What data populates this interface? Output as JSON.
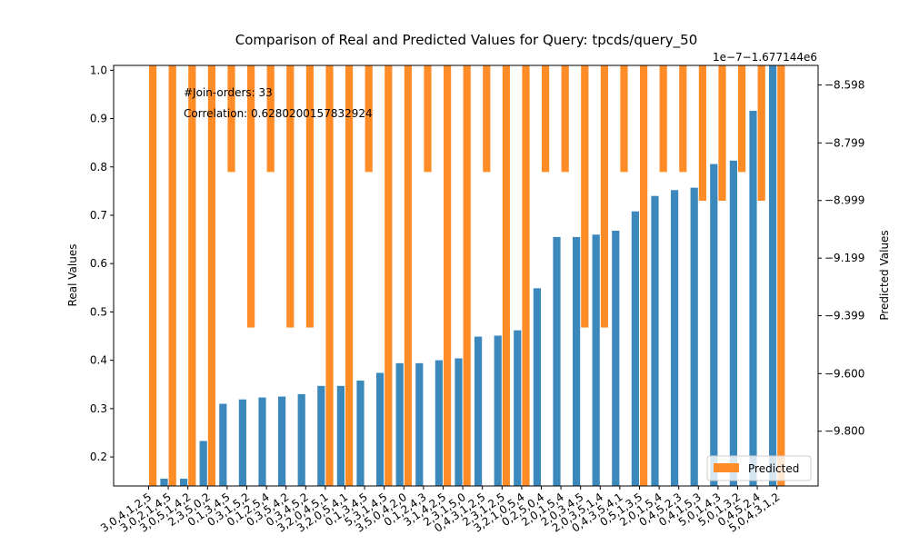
{
  "chart_data": {
    "type": "bar",
    "title": "Comparison of Real and Predicted Values for Query: tpcds/query_50",
    "ylabel": "Real Values",
    "y2label": "Predicted Values",
    "y2_offset_text": "1e−7−1.677144e6",
    "annotations": [
      "#Join-orders: 33",
      "Correlation: 0.6280200157832924"
    ],
    "legend": {
      "position": "bottom-right",
      "entries": [
        "Predicted"
      ]
    },
    "ylim": [
      0.14,
      1.01
    ],
    "y2lim": [
      -9.99,
      -8.53
    ],
    "y_ticks": [
      "0.2",
      "0.3",
      "0.4",
      "0.5",
      "0.6",
      "0.7",
      "0.8",
      "0.9",
      "1.0"
    ],
    "y2_ticks": [
      "-8.598",
      "-8.799",
      "-8.999",
      "-9.199",
      "-9.399",
      "-9.600",
      "-9.800"
    ],
    "categories": [
      "3,0,4,1,2,5",
      "3,0,2,1,4,5",
      "3,0,5,1,4,2",
      "2,3,5,0,2",
      "0,1,3,4,5",
      "0,3,1,5,2",
      "0,1,2,5,4",
      "0,3,5,4,2",
      "0,3,4,5,2",
      "3,2,0,4,5,1",
      "3,2,0,5,4,1",
      "0,1,3,4,5",
      "5,3,1,4,5",
      "3,5,0,4,2,0",
      "0,1,2,4,3",
      "3,1,4,2,5",
      "2,3,1,5,0",
      "0,4,3,1,2,5",
      "2,3,1,2,5",
      "3,2,1,0,5,4",
      "0,2,5,0,4",
      "2,0,1,5,4",
      "2,0,3,4,5",
      "2,0,3,5,1,4",
      "0,4,3,5,4,1",
      "0,5,1,3,5",
      "2,0,1,5,4",
      "0,4,5,2,3",
      "0,4,1,5,3",
      "5,0,1,4,3",
      "5,0,1,3,2",
      "0,4,5,2,4",
      "5,0,4,3,1,2"
    ],
    "series": [
      {
        "name": "",
        "color": "#3b88bd",
        "values": [
          0.14,
          0.155,
          0.155,
          0.233,
          0.31,
          0.319,
          0.323,
          0.325,
          0.33,
          0.347,
          0.347,
          0.358,
          0.374,
          0.394,
          0.394,
          0.4,
          0.404,
          0.449,
          0.451,
          0.462,
          0.549,
          0.655,
          0.655,
          0.66,
          0.668,
          0.708,
          0.74,
          0.752,
          0.757,
          0.806,
          0.813,
          0.916,
          1.01
        ]
      },
      {
        "name": "Predicted",
        "color": "#ff8c26",
        "values": [
          -9.99,
          -9.99,
          -9.99,
          -9.99,
          -8.9,
          -9.44,
          -8.9,
          -9.44,
          -9.44,
          -9.99,
          -9.99,
          -8.9,
          -9.99,
          -9.99,
          -8.9,
          -9.99,
          -9.99,
          -8.9,
          -9.99,
          -9.99,
          -8.9,
          -8.9,
          -9.44,
          -9.44,
          -8.9,
          -9.99,
          -8.9,
          -8.9,
          -9.0,
          -9.0,
          -8.9,
          -9.0,
          -9.99
        ]
      }
    ]
  }
}
